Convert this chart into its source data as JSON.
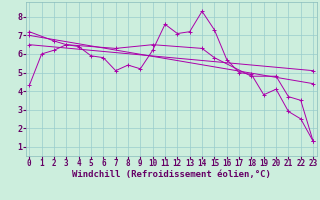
{
  "background_color": "#cceedd",
  "plot_bg_color": "#cceedd",
  "grid_color": "#99cccc",
  "line_color": "#aa00aa",
  "xlabel": "Windchill (Refroidissement éolien,°C)",
  "xlabel_color": "#660066",
  "tick_color": "#660066",
  "xlabel_fontsize": 6.5,
  "tick_fontsize": 5.5,
  "ylabel_ticks": [
    1,
    2,
    3,
    4,
    5,
    6,
    7,
    8
  ],
  "xlabel_ticks": [
    0,
    1,
    2,
    3,
    4,
    5,
    6,
    7,
    8,
    9,
    10,
    11,
    12,
    13,
    14,
    15,
    16,
    17,
    18,
    19,
    20,
    21,
    22,
    23
  ],
  "xlim": [
    -0.3,
    23.3
  ],
  "ylim": [
    0.5,
    8.8
  ],
  "series": [
    {
      "x": [
        0,
        1,
        2,
        3,
        4,
        5,
        6,
        7,
        8,
        9,
        10,
        11,
        12,
        13,
        14,
        15,
        16,
        17,
        18,
        19,
        20,
        21,
        22,
        23
      ],
      "y": [
        4.3,
        6.0,
        6.2,
        6.5,
        6.4,
        5.9,
        5.8,
        5.1,
        5.4,
        5.2,
        6.2,
        7.6,
        7.1,
        7.2,
        8.3,
        7.3,
        5.7,
        5.0,
        4.9,
        3.8,
        4.1,
        2.9,
        2.5,
        1.3
      ]
    },
    {
      "x": [
        0,
        2,
        3,
        7,
        10,
        14,
        15,
        18,
        20,
        21,
        22,
        23
      ],
      "y": [
        7.2,
        6.7,
        6.5,
        6.3,
        6.5,
        6.3,
        5.8,
        4.8,
        4.8,
        3.7,
        3.5,
        1.3
      ]
    },
    {
      "x": [
        0,
        23
      ],
      "y": [
        7.0,
        4.4
      ]
    },
    {
      "x": [
        0,
        23
      ],
      "y": [
        6.5,
        5.1
      ]
    }
  ]
}
